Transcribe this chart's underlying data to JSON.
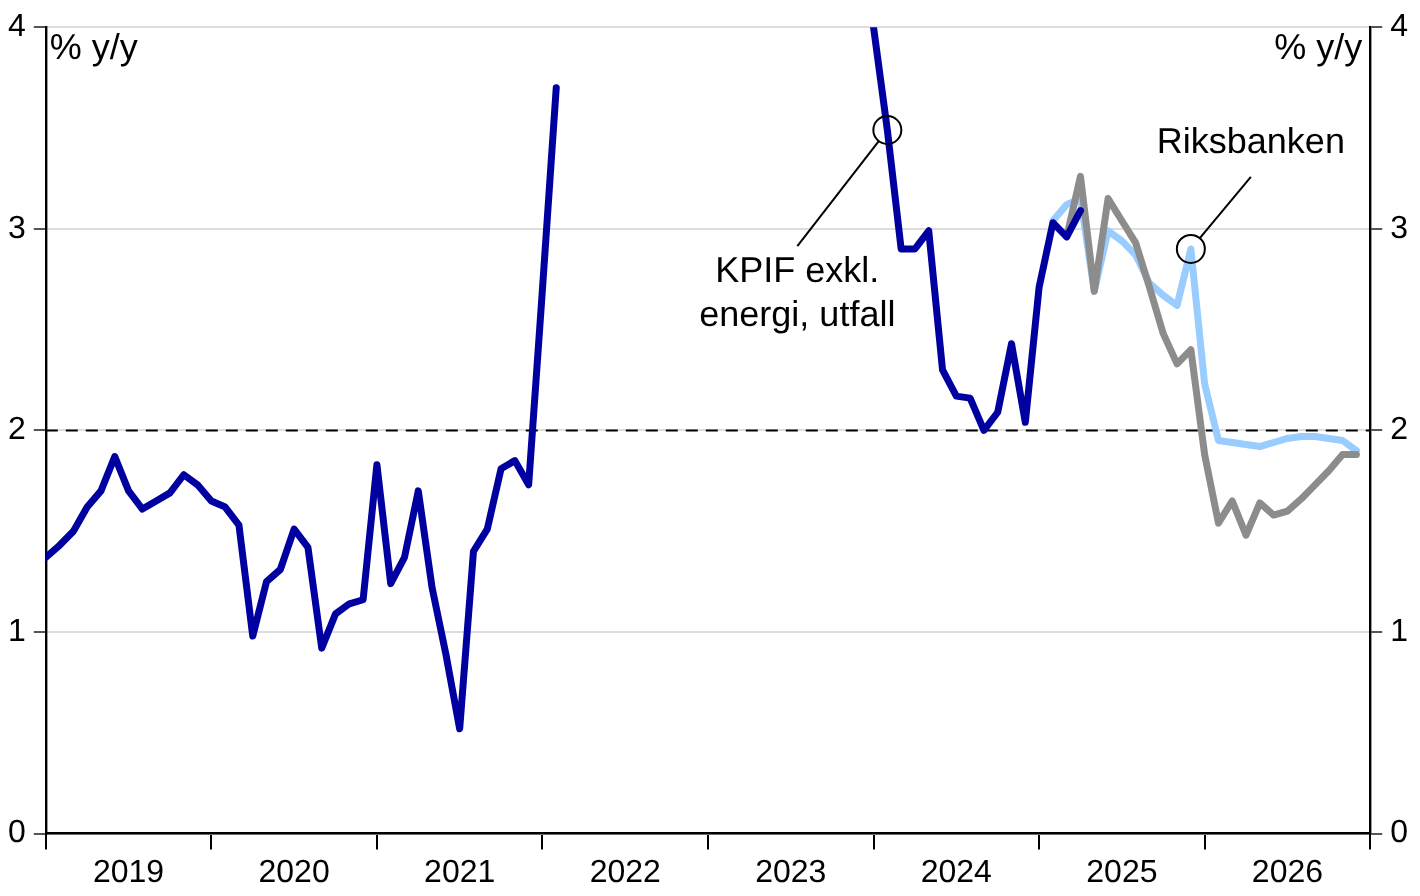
{
  "chart_data": {
    "type": "line",
    "ylabel": "% y/y",
    "y2label": "% y/y",
    "xlim": [
      "2019-01",
      "2027-01"
    ],
    "xticks": [
      {
        "value": "2019-01",
        "label": null
      },
      {
        "value": "2019-07",
        "label": "2019"
      },
      {
        "value": "2020-01",
        "label": null
      },
      {
        "value": "2020-07",
        "label": "2020"
      },
      {
        "value": "2021-01",
        "label": null
      },
      {
        "value": "2021-07",
        "label": "2021"
      },
      {
        "value": "2022-01",
        "label": null
      },
      {
        "value": "2022-07",
        "label": "2022"
      },
      {
        "value": "2023-01",
        "label": null
      },
      {
        "value": "2023-07",
        "label": "2023"
      },
      {
        "value": "2024-01",
        "label": null
      },
      {
        "value": "2024-07",
        "label": "2024"
      },
      {
        "value": "2025-01",
        "label": null
      },
      {
        "value": "2025-07",
        "label": "2025"
      },
      {
        "value": "2026-01",
        "label": null
      },
      {
        "value": "2026-07",
        "label": "2026"
      },
      {
        "value": "2027-01",
        "label": null
      }
    ],
    "ylim": [
      0,
      4
    ],
    "yticks": [
      0,
      1,
      2,
      3,
      4
    ],
    "y2lim": [
      0,
      4
    ],
    "y2ticks": [
      0,
      1,
      2,
      3,
      4
    ],
    "grid": "y",
    "legend": false,
    "marker": "none",
    "line_style": "solid",
    "ref_lines": [
      {
        "axis": "y",
        "value": 2,
        "color": "#000000",
        "line_style": "dashed"
      }
    ],
    "annotations": [
      {
        "text": "KPIF exkl. energi, utfall",
        "x": "2024-02",
        "y": 3.49
      },
      {
        "text": "Riksbanken",
        "x": "2025-12",
        "y": 2.9
      }
    ],
    "series": [
      {
        "color": "#0000a0",
        "x": [
          "2019-01",
          "2019-02",
          "2019-03",
          "2019-04",
          "2019-05",
          "2019-06",
          "2019-07",
          "2019-08",
          "2019-09",
          "2019-10",
          "2019-11",
          "2019-12",
          "2020-01",
          "2020-02",
          "2020-03",
          "2020-04",
          "2020-05",
          "2020-06",
          "2020-07",
          "2020-08",
          "2020-09",
          "2020-10",
          "2020-11",
          "2020-12",
          "2021-01",
          "2021-02",
          "2021-03",
          "2021-04",
          "2021-05",
          "2021-06",
          "2021-07",
          "2021-08",
          "2021-09",
          "2021-10",
          "2021-11",
          "2021-12",
          "2022-01",
          "2022-02",
          "2022-03",
          "2022-04",
          "2022-05",
          "2022-06",
          "2022-07",
          "2022-08",
          "2022-09",
          "2022-10",
          "2022-11",
          "2022-12",
          "2023-01",
          "2023-02",
          "2023-03",
          "2023-04",
          "2023-05",
          "2023-06",
          "2023-07",
          "2023-08",
          "2023-09",
          "2023-10",
          "2023-11",
          "2023-12",
          "2024-01",
          "2024-02",
          "2024-03",
          "2024-04",
          "2024-05",
          "2024-06",
          "2024-07",
          "2024-08",
          "2024-09",
          "2024-10",
          "2024-11",
          "2024-12",
          "2025-01",
          "2025-02",
          "2025-03",
          "2025-04"
        ],
        "values": [
          1.37,
          1.43,
          1.5,
          1.62,
          1.7,
          1.87,
          1.7,
          1.61,
          1.65,
          1.69,
          1.78,
          1.73,
          1.65,
          1.62,
          1.53,
          0.98,
          1.25,
          1.31,
          1.51,
          1.42,
          0.92,
          1.09,
          1.14,
          1.16,
          1.83,
          1.24,
          1.37,
          1.7,
          1.22,
          0.89,
          0.52,
          1.4,
          1.51,
          1.81,
          1.85,
          1.73,
          2.7,
          3.7,
          null,
          null,
          null,
          null,
          null,
          null,
          null,
          null,
          null,
          null,
          null,
          null,
          null,
          null,
          null,
          null,
          null,
          null,
          null,
          null,
          null,
          null,
          4.0,
          3.49,
          2.9,
          2.9,
          2.99,
          2.3,
          2.17,
          2.16,
          2.0,
          2.09,
          2.43,
          2.04,
          2.71,
          3.03,
          2.96,
          3.09
        ]
      },
      {
        "color": "#8c8c8c",
        "x": [
          "2025-03",
          "2025-04",
          "2025-05",
          "2025-06",
          "2025-07",
          "2025-08",
          "2025-09",
          "2025-10",
          "2025-11",
          "2025-12",
          "2026-01",
          "2026-02",
          "2026-03",
          "2026-04",
          "2026-05",
          "2026-06",
          "2026-07",
          "2026-08",
          "2026-09",
          "2026-10",
          "2026-11",
          "2026-12"
        ],
        "values": [
          2.96,
          3.26,
          2.69,
          3.15,
          3.04,
          2.93,
          2.71,
          2.48,
          2.33,
          2.4,
          1.88,
          1.54,
          1.65,
          1.48,
          1.64,
          1.58,
          1.6,
          1.66,
          1.73,
          1.8,
          1.88,
          1.88
        ]
      },
      {
        "color": "#99ccff",
        "x": [
          "2025-02",
          "2025-03",
          "2025-04",
          "2025-05",
          "2025-06",
          "2025-07",
          "2025-08",
          "2025-09",
          "2025-10",
          "2025-11",
          "2025-12",
          "2026-01",
          "2026-02",
          "2026-03",
          "2026-04",
          "2026-05",
          "2026-06",
          "2026-07",
          "2026-08",
          "2026-09",
          "2026-10",
          "2026-11",
          "2026-12"
        ],
        "values": [
          3.04,
          3.12,
          3.15,
          2.69,
          2.99,
          2.94,
          2.87,
          2.73,
          2.67,
          2.62,
          2.9,
          2.23,
          1.95,
          1.94,
          1.93,
          1.92,
          1.94,
          1.96,
          1.97,
          1.97,
          1.96,
          1.95,
          1.9
        ]
      }
    ]
  }
}
